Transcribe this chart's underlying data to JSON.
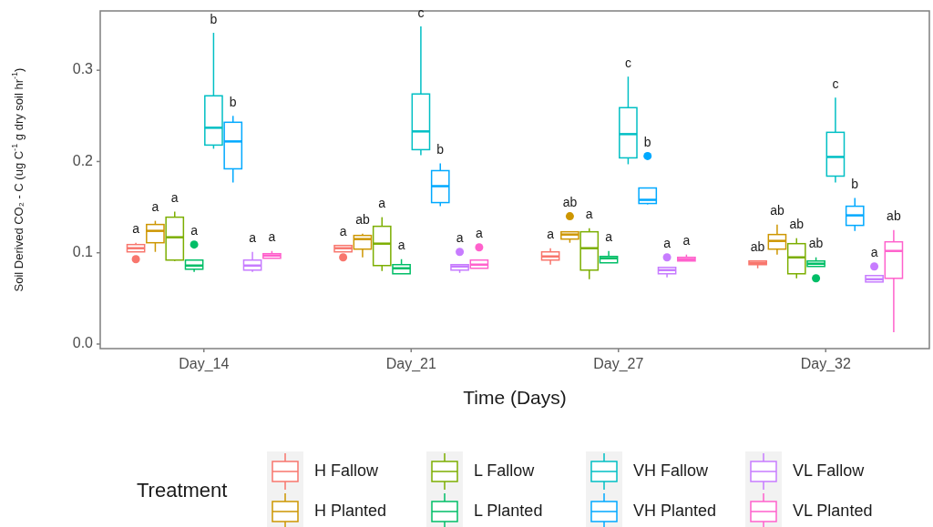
{
  "chart_data": {
    "type": "box",
    "xlabel": "Time (Days)",
    "ylabel": "Soil Derived CO₂ - C (ug C$^{-1}$ g dry soil hr$^{-1}$)",
    "legend_title": "Treatment",
    "legend": "bottom",
    "grid": false,
    "categories": [
      "Day_14",
      "Day_21",
      "Day_27",
      "Day_32"
    ],
    "ylim": [
      -0.005,
      0.365
    ],
    "yticks": [
      {
        "value": 0,
        "label": "0.0"
      },
      0.1,
      0.2,
      0.3
    ],
    "series": [
      {
        "name": "H Fallow",
        "color": "#f8766d",
        "boxes": [
          {
            "low": 0.101,
            "q1": 0.101,
            "median": 0.105,
            "q3": 0.109,
            "high": 0.111,
            "outliers": [
              0.093
            ]
          },
          {
            "low": 0.101,
            "q1": 0.101,
            "median": 0.105,
            "q3": 0.108,
            "high": 0.108,
            "outliers": [
              0.095
            ]
          },
          {
            "low": 0.087,
            "q1": 0.092,
            "median": 0.096,
            "q3": 0.101,
            "high": 0.105
          },
          {
            "low": 0.083,
            "q1": 0.087,
            "median": 0.089,
            "q3": 0.091,
            "high": 0.091
          }
        ]
      },
      {
        "name": "H Planted",
        "color": "#cd9600",
        "boxes": [
          {
            "low": 0.101,
            "q1": 0.111,
            "median": 0.124,
            "q3": 0.131,
            "high": 0.135
          },
          {
            "low": 0.095,
            "q1": 0.104,
            "median": 0.115,
            "q3": 0.119,
            "high": 0.121
          },
          {
            "low": 0.111,
            "q1": 0.115,
            "median": 0.12,
            "q3": 0.123,
            "high": 0.123,
            "outliers": [
              0.14
            ]
          },
          {
            "low": 0.098,
            "q1": 0.104,
            "median": 0.113,
            "q3": 0.12,
            "high": 0.131
          }
        ]
      },
      {
        "name": "L Fallow",
        "color": "#7cae00",
        "boxes": [
          {
            "low": 0.091,
            "q1": 0.092,
            "median": 0.117,
            "q3": 0.139,
            "high": 0.145
          },
          {
            "low": 0.08,
            "q1": 0.086,
            "median": 0.11,
            "q3": 0.129,
            "high": 0.139
          },
          {
            "low": 0.071,
            "q1": 0.081,
            "median": 0.105,
            "q3": 0.123,
            "high": 0.127
          },
          {
            "low": 0.072,
            "q1": 0.077,
            "median": 0.095,
            "q3": 0.11,
            "high": 0.116
          }
        ]
      },
      {
        "name": "L Planted",
        "color": "#00be67",
        "boxes": [
          {
            "low": 0.079,
            "q1": 0.082,
            "median": 0.086,
            "q3": 0.092,
            "high": 0.092,
            "outliers": [
              0.109
            ]
          },
          {
            "low": 0.077,
            "q1": 0.077,
            "median": 0.083,
            "q3": 0.087,
            "high": 0.093
          },
          {
            "low": 0.089,
            "q1": 0.089,
            "median": 0.094,
            "q3": 0.096,
            "high": 0.102
          },
          {
            "low": 0.085,
            "q1": 0.085,
            "median": 0.088,
            "q3": 0.091,
            "high": 0.095,
            "outliers": [
              0.072
            ]
          }
        ]
      },
      {
        "name": "VH Fallow",
        "color": "#00bfc4",
        "boxes": [
          {
            "low": 0.214,
            "q1": 0.218,
            "median": 0.237,
            "q3": 0.272,
            "high": 0.341
          },
          {
            "low": 0.207,
            "q1": 0.213,
            "median": 0.233,
            "q3": 0.274,
            "high": 0.348
          },
          {
            "low": 0.197,
            "q1": 0.204,
            "median": 0.23,
            "q3": 0.259,
            "high": 0.293
          },
          {
            "low": 0.177,
            "q1": 0.184,
            "median": 0.205,
            "q3": 0.232,
            "high": 0.27
          }
        ]
      },
      {
        "name": "VH Planted",
        "color": "#00a9ff",
        "boxes": [
          {
            "low": 0.177,
            "q1": 0.192,
            "median": 0.222,
            "q3": 0.243,
            "high": 0.25
          },
          {
            "low": 0.151,
            "q1": 0.155,
            "median": 0.173,
            "q3": 0.19,
            "high": 0.198
          },
          {
            "low": 0.153,
            "q1": 0.154,
            "median": 0.158,
            "q3": 0.171,
            "high": 0.171,
            "outliers": [
              0.206
            ]
          },
          {
            "low": 0.124,
            "q1": 0.13,
            "median": 0.141,
            "q3": 0.151,
            "high": 0.16
          }
        ]
      },
      {
        "name": "VL Fallow",
        "color": "#c77cff",
        "boxes": [
          {
            "low": 0.079,
            "q1": 0.081,
            "median": 0.086,
            "q3": 0.092,
            "high": 0.101
          },
          {
            "low": 0.078,
            "q1": 0.081,
            "median": 0.085,
            "q3": 0.087,
            "high": 0.087,
            "outliers": [
              0.101
            ]
          },
          {
            "low": 0.073,
            "q1": 0.077,
            "median": 0.081,
            "q3": 0.084,
            "high": 0.084,
            "outliers": [
              0.095
            ]
          },
          {
            "low": 0.068,
            "q1": 0.068,
            "median": 0.071,
            "q3": 0.075,
            "high": 0.075,
            "outliers": [
              0.085
            ]
          }
        ]
      },
      {
        "name": "VL Planted",
        "color": "#ff61cc",
        "boxes": [
          {
            "low": 0.094,
            "q1": 0.094,
            "median": 0.097,
            "q3": 0.099,
            "high": 0.102
          },
          {
            "low": 0.083,
            "q1": 0.083,
            "median": 0.087,
            "q3": 0.092,
            "high": 0.092,
            "outliers": [
              0.106
            ]
          },
          {
            "low": 0.091,
            "q1": 0.091,
            "median": 0.093,
            "q3": 0.095,
            "high": 0.098
          },
          {
            "low": 0.013,
            "q1": 0.072,
            "median": 0.102,
            "q3": 0.112,
            "high": 0.125
          }
        ]
      }
    ],
    "annotations": [
      "a",
      "a",
      "a",
      "a",
      "b",
      "b",
      "a",
      "a",
      "a",
      "ab",
      "a",
      "a",
      "c",
      "b",
      "a",
      "a",
      "a",
      "ab",
      "a",
      "a",
      "c",
      "b",
      "a",
      "a",
      "ab",
      "ab",
      "ab",
      "ab",
      "c",
      "b",
      "a",
      "ab"
    ]
  }
}
